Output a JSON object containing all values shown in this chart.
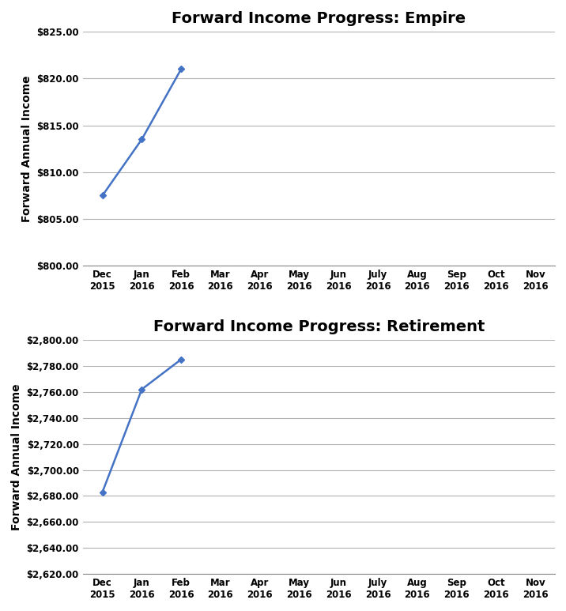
{
  "empire": {
    "title": "Forward Income Progress: Empire",
    "ylabel": "Forward Annual Income",
    "x_values": [
      0,
      1,
      2
    ],
    "y_values": [
      807.5,
      813.5,
      821.0
    ],
    "ylim": [
      800.0,
      825.0
    ],
    "yticks": [
      800.0,
      805.0,
      810.0,
      815.0,
      820.0,
      825.0
    ],
    "ytick_labels": [
      "$800.00",
      "$805.00",
      "$810.00",
      "$815.00",
      "$820.00",
      "$825.00"
    ]
  },
  "retirement": {
    "title": "Forward Income Progress: Retirement",
    "ylabel": "Forward Annual Income",
    "x_values": [
      0,
      1,
      2
    ],
    "y_values": [
      2683.0,
      2762.0,
      2785.0
    ],
    "ylim": [
      2620.0,
      2800.0
    ],
    "yticks": [
      2620.0,
      2640.0,
      2660.0,
      2680.0,
      2700.0,
      2720.0,
      2740.0,
      2760.0,
      2780.0,
      2800.0
    ],
    "ytick_labels": [
      "$2,620.00",
      "$2,640.00",
      "$2,660.00",
      "$2,680.00",
      "$2,700.00",
      "$2,720.00",
      "$2,740.00",
      "$2,760.00",
      "$2,780.00",
      "$2,800.00"
    ]
  },
  "x_tick_labels": [
    [
      "Dec",
      "2015"
    ],
    [
      "Jan",
      "2016"
    ],
    [
      "Feb",
      "2016"
    ],
    [
      "Mar",
      "2016"
    ],
    [
      "Apr",
      "2016"
    ],
    [
      "May",
      "2016"
    ],
    [
      "Jun",
      "2016"
    ],
    [
      "July",
      "2016"
    ],
    [
      "Aug",
      "2016"
    ],
    [
      "Sep",
      "2016"
    ],
    [
      "Oct",
      "2016"
    ],
    [
      "Nov",
      "2016"
    ]
  ],
  "n_xticks": 12,
  "line_color": "#4472c4",
  "marker": "D",
  "marker_size": 4,
  "line_width": 1.8,
  "bg_color": "#ffffff",
  "plot_bg_color": "#ffffff",
  "grid_color": "#b0b0b0",
  "title_fontsize": 14,
  "axis_label_fontsize": 10,
  "tick_fontsize": 8.5
}
